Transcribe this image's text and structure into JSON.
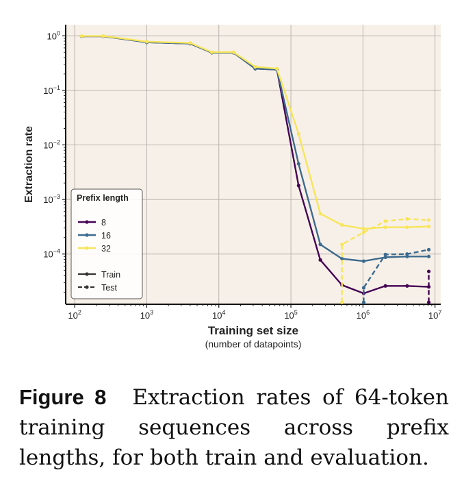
{
  "chart_data": {
    "type": "line",
    "xlabel": "Training set size",
    "xlabel_sub": "(number of datapoints)",
    "ylabel": "Extraction rate",
    "xscale": "log",
    "yscale": "log",
    "xlim": [
      75,
      12000000
    ],
    "ylim": [
      1.2e-05,
      1.6
    ],
    "x_ticks": [
      {
        "exp": 2,
        "label_base": "10",
        "label_exp": "2"
      },
      {
        "exp": 3,
        "label_base": "10",
        "label_exp": "3"
      },
      {
        "exp": 4,
        "label_base": "10",
        "label_exp": "4"
      },
      {
        "exp": 5,
        "label_base": "10",
        "label_exp": "5"
      },
      {
        "exp": 6,
        "label_base": "10",
        "label_exp": "6"
      },
      {
        "exp": 7,
        "label_base": "10",
        "label_exp": "7"
      }
    ],
    "y_ticks": [
      {
        "exp": 0,
        "label_base": "10",
        "label_exp": "0"
      },
      {
        "exp": -1,
        "label_base": "10",
        "label_exp": "−1"
      },
      {
        "exp": -2,
        "label_base": "10",
        "label_exp": "−2"
      },
      {
        "exp": -3,
        "label_base": "10",
        "label_exp": "−3"
      },
      {
        "exp": -4,
        "label_base": "10",
        "label_exp": "−4"
      }
    ],
    "grid": true,
    "legend": {
      "title": "Prefix length",
      "placement": "lower-left",
      "color_entries": [
        {
          "label": "8",
          "color": "#440154"
        },
        {
          "label": "16",
          "color": "#3b6a8e"
        },
        {
          "label": "32",
          "color": "#f7e55a"
        }
      ],
      "style_entries": [
        {
          "label": "Train",
          "dash": "solid"
        },
        {
          "label": "Test",
          "dash": "dashed"
        }
      ]
    },
    "series": [
      {
        "name": "8",
        "split": "Train",
        "color": "#440154",
        "dash": "solid",
        "x": [
          125,
          250,
          1000,
          4000,
          8000,
          16000,
          32000,
          64000,
          128000,
          256000,
          512000,
          1024000,
          2048000,
          4096000,
          8192000
        ],
        "y": [
          0.98,
          0.98,
          0.76,
          0.72,
          0.49,
          0.49,
          0.25,
          0.24,
          0.0018,
          7.8e-05,
          2.7e-05,
          1.9e-05,
          2.6e-05,
          2.6e-05,
          2.5e-05
        ]
      },
      {
        "name": "16",
        "split": "Train",
        "color": "#3b6a8e",
        "dash": "solid",
        "x": [
          125,
          250,
          1000,
          4000,
          8000,
          16000,
          32000,
          64000,
          128000,
          256000,
          512000,
          1024000,
          2048000,
          4096000,
          8192000
        ],
        "y": [
          0.98,
          0.98,
          0.76,
          0.72,
          0.49,
          0.49,
          0.25,
          0.24,
          0.0045,
          0.00015,
          8.2e-05,
          7.4e-05,
          8.7e-05,
          9e-05,
          9e-05
        ]
      },
      {
        "name": "32",
        "split": "Train",
        "color": "#f7e55a",
        "dash": "solid",
        "x": [
          125,
          250,
          1000,
          4000,
          8000,
          16000,
          32000,
          64000,
          128000,
          256000,
          512000,
          1024000,
          2048000,
          4096000,
          8192000
        ],
        "y": [
          0.99,
          0.99,
          0.78,
          0.74,
          0.5,
          0.5,
          0.27,
          0.25,
          0.016,
          0.00055,
          0.00034,
          0.00029,
          0.00031,
          0.00031,
          0.00032
        ]
      },
      {
        "name": "8",
        "split": "Test",
        "color": "#440154",
        "dash": "dashed",
        "x": [
          8192000,
          8192000
        ],
        "y": [
          1.3e-05,
          4.8e-05
        ]
      },
      {
        "name": "16",
        "split": "Test",
        "color": "#3b6a8e",
        "dash": "dashed",
        "x": [
          1024000,
          1024000,
          2048000,
          4096000,
          8192000
        ],
        "y": [
          1.3e-05,
          2.4e-05,
          9.8e-05,
          0.0001,
          0.00012
        ]
      },
      {
        "name": "32",
        "split": "Test",
        "color": "#f7e55a",
        "dash": "dashed",
        "x": [
          512000,
          512000,
          1024000,
          2048000,
          4096000,
          8192000
        ],
        "y": [
          1.3e-05,
          0.00015,
          0.00025,
          0.0004,
          0.00044,
          0.00042
        ]
      }
    ]
  },
  "caption": {
    "label": "Figure 8",
    "text": "Extraction rates of 64-token training sequences across prefix lengths, for both train and evaluation."
  }
}
